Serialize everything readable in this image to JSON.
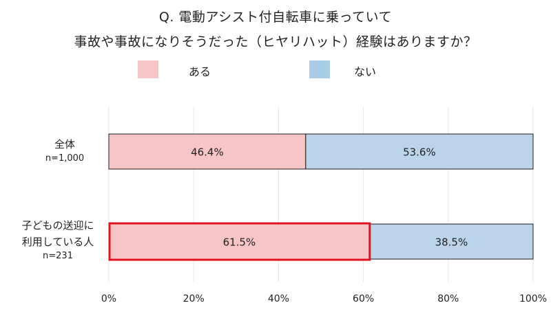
{
  "chart_data": {
    "type": "bar",
    "orientation": "horizontal",
    "stacked": "percent",
    "title_lines": [
      "Q. 電動アシスト付自転車に乗っていて",
      "事故や事故になりそうだった（ヒヤリハット）経験はありますか？"
    ],
    "categories": [
      {
        "label_lines": [
          "全体"
        ],
        "n": "n=1,000"
      },
      {
        "label_lines": [
          "子どもの送迎に",
          "利用している人"
        ],
        "n": "n=231"
      }
    ],
    "series": [
      {
        "name": "ある",
        "color": "#f6c5c5",
        "values": [
          46.4,
          61.5
        ],
        "labels": [
          "46.4%",
          "61.5%"
        ]
      },
      {
        "name": "ない",
        "color": "#bcd4ea",
        "values": [
          53.6,
          38.5
        ],
        "labels": [
          "53.6%",
          "38.5%"
        ]
      }
    ],
    "legend_swatch_colors": [
      "#f6c5c5",
      "#a9cde6"
    ],
    "highlight": {
      "category_index": 1,
      "series_index": 0,
      "color": "#e0121f"
    },
    "xlim": [
      0,
      100
    ],
    "xticks": [
      "0%",
      "20%",
      "40%",
      "60%",
      "80%",
      "100%"
    ],
    "grid": true,
    "legend_position": "top"
  }
}
